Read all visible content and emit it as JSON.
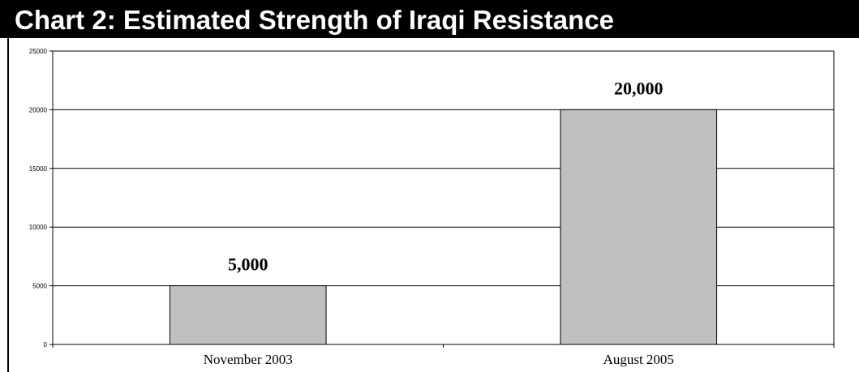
{
  "title": "Chart 2: Estimated Strength of Iraqi Resistance",
  "colors": {
    "title_background": "#000000",
    "title_text": "#ffffff",
    "bar_fill": "#c0c0c0",
    "bar_stroke": "#000000",
    "gridline": "#000000"
  },
  "chart_data": {
    "type": "bar",
    "categories": [
      "November 2003",
      "August 2005"
    ],
    "values": [
      5000,
      20000
    ],
    "data_labels": [
      "5,000",
      "20,000"
    ],
    "xlabel": "",
    "ylabel": "",
    "ylim": [
      0,
      25000
    ],
    "yticks": [
      0,
      5000,
      10000,
      15000,
      20000,
      25000
    ],
    "grid": true,
    "legend": "none"
  }
}
